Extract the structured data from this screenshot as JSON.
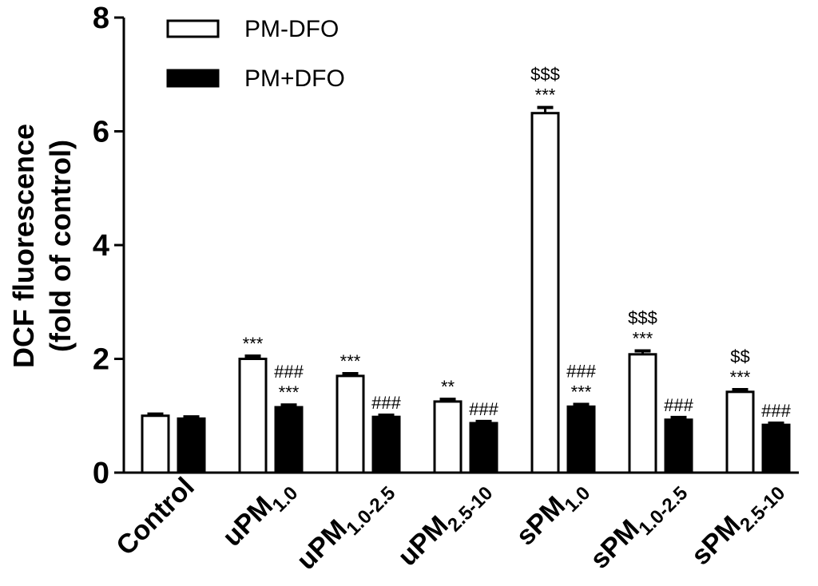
{
  "chart_data": {
    "type": "bar",
    "ylabel": "DCF fluorescence (fold of control)",
    "ylabel_lines": [
      "DCF fluorescence",
      "(fold of control)"
    ],
    "ylim": [
      0,
      8
    ],
    "yticks": [
      "0",
      "2",
      "4",
      "6",
      "8"
    ],
    "legend_position": "top-left",
    "categories": [
      {
        "base": "Control",
        "sub": ""
      },
      {
        "base": "uPM",
        "sub": "1.0"
      },
      {
        "base": "uPM",
        "sub": "1.0-2.5"
      },
      {
        "base": "uPM",
        "sub": "2.5-10"
      },
      {
        "base": "sPM",
        "sub": "1.0"
      },
      {
        "base": "sPM",
        "sub": "1.0-2.5"
      },
      {
        "base": "sPM",
        "sub": "2.5-10"
      }
    ],
    "series": [
      {
        "name": "PM-DFO",
        "fill": "#ffffff",
        "values": [
          1.0,
          2.0,
          1.7,
          1.25,
          6.32,
          2.08,
          1.42
        ],
        "errors": [
          0.03,
          0.05,
          0.04,
          0.04,
          0.1,
          0.06,
          0.04
        ],
        "annotations": [
          [],
          [
            "***"
          ],
          [
            "***"
          ],
          [
            "**"
          ],
          [
            "$$$",
            "***"
          ],
          [
            "$$$",
            "***"
          ],
          [
            "$$",
            "***"
          ]
        ]
      },
      {
        "name": "PM+DFO",
        "fill": "#000000",
        "values": [
          0.95,
          1.15,
          0.98,
          0.87,
          1.16,
          0.93,
          0.84
        ],
        "errors": [
          0.03,
          0.04,
          0.03,
          0.03,
          0.04,
          0.04,
          0.03
        ],
        "annotations": [
          [],
          [
            "###",
            "***"
          ],
          [
            "###"
          ],
          [
            "###"
          ],
          [
            "###",
            "***"
          ],
          [
            "###"
          ],
          [
            "###"
          ]
        ]
      }
    ]
  }
}
